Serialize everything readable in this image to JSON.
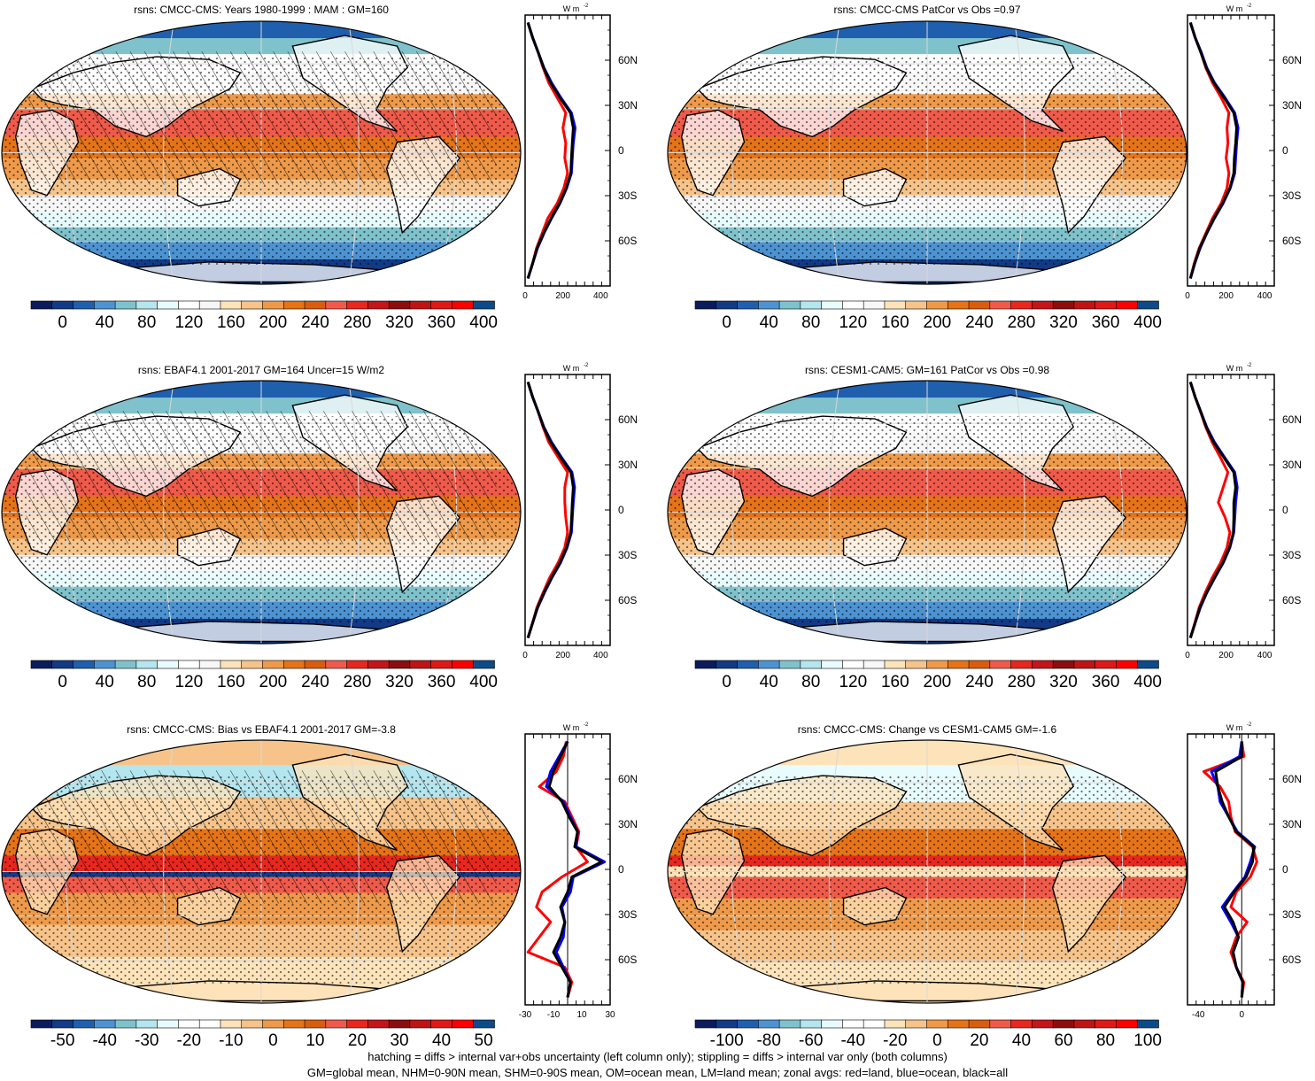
{
  "palette_full": [
    "#0b1c5c",
    "#123a86",
    "#1f5fae",
    "#4d93d2",
    "#7fc2cc",
    "#b3e6ee",
    "#e8fbfd",
    "#ffffff",
    "#f7f7f7",
    "#fde3ba",
    "#f6c38a",
    "#ee9a4a",
    "#e57318",
    "#d95d0e",
    "#f05a4a",
    "#e8271f",
    "#c4151b",
    "#8b0d0d",
    "#c01414",
    "#e01818",
    "#ff0000",
    "#0d4a8a"
  ],
  "palette_diff": [
    "#0b1c5c",
    "#123a86",
    "#1f5fae",
    "#4d93d2",
    "#7fc2cc",
    "#b3e6ee",
    "#e8fbfd",
    "#ffffff",
    "#ffffff",
    "#fde3ba",
    "#f6c38a",
    "#ee9a4a",
    "#e57318",
    "#d95d0e",
    "#f05a4a",
    "#e8271f",
    "#c4151b",
    "#8b0d0d",
    "#c01414",
    "#e01818",
    "#ff0000",
    "#0d4a8a"
  ],
  "lat_labels": [
    "60N",
    "30N",
    "0",
    "30S",
    "60S"
  ],
  "line_colors": {
    "land": "#ff0000",
    "ocean": "#0000ff",
    "all": "#000000"
  },
  "footnotes": {
    "line1": "hatching = diffs > internal var+obs uncertainty (left column only); stippling = diffs > internal var only (both columns)",
    "line2": "GM=global mean, NHM=0-90N mean, SHM=0-90S mean, OM=ocean mean, LM=land mean; zonal avgs: red=land, blue=ocean, black=all"
  },
  "chart_data": [
    {
      "type": "heatmap",
      "title": "rsns: CMCC-CMS: Years 1980-1999 : MAM : GM=160",
      "colorbar_ticks": [
        "0",
        "40",
        "80",
        "120",
        "160",
        "200",
        "240",
        "280",
        "320",
        "360",
        "400"
      ],
      "pattern": "mean",
      "hatching": true,
      "profile": {
        "unit_label": "W m",
        "unit_exp": "-2",
        "xlim": [
          0,
          450
        ],
        "xticks": [
          0,
          200,
          400
        ],
        "xtick_labels": [
          "0",
          "200",
          "400"
        ],
        "lat": [
          -85,
          -75,
          -65,
          -55,
          -45,
          -35,
          -25,
          -15,
          -5,
          5,
          15,
          25,
          35,
          45,
          55,
          65,
          75,
          85
        ],
        "series": [
          {
            "name": "land",
            "values": [
              15,
              40,
              60,
              90,
              120,
              170,
              205,
              225,
              210,
              215,
              200,
              215,
              170,
              125,
              95,
              70,
              40,
              15
            ]
          },
          {
            "name": "ocean",
            "values": [
              15,
              40,
              65,
              100,
              140,
              185,
              220,
              245,
              250,
              255,
              265,
              245,
              190,
              140,
              100,
              70,
              40,
              15
            ]
          },
          {
            "name": "all",
            "values": [
              15,
              40,
              63,
              98,
              138,
              183,
              218,
              242,
              245,
              250,
              255,
              240,
              185,
              135,
              98,
              70,
              40,
              15
            ]
          }
        ]
      }
    },
    {
      "type": "heatmap",
      "title": "rsns: CMCC-CMS PatCor vs Obs =0.97",
      "colorbar_ticks": [
        "0",
        "40",
        "80",
        "120",
        "160",
        "200",
        "240",
        "280",
        "320",
        "360",
        "400"
      ],
      "pattern": "mean",
      "hatching": false,
      "profile": {
        "unit_label": "W m",
        "unit_exp": "-2",
        "xlim": [
          0,
          450
        ],
        "xticks": [
          0,
          200,
          400
        ],
        "xtick_labels": [
          "0",
          "200",
          "400"
        ],
        "lat": [
          -85,
          -75,
          -65,
          -55,
          -45,
          -35,
          -25,
          -15,
          -5,
          5,
          15,
          25,
          35,
          45,
          55,
          65,
          75,
          85
        ],
        "series": [
          {
            "name": "land",
            "values": [
              15,
              35,
              60,
              95,
              130,
              175,
              205,
              215,
              200,
              210,
              205,
              215,
              175,
              130,
              95,
              70,
              40,
              15
            ]
          },
          {
            "name": "ocean",
            "values": [
              15,
              38,
              65,
              100,
              140,
              185,
              222,
              245,
              250,
              255,
              262,
              245,
              195,
              140,
              100,
              72,
              40,
              15
            ]
          },
          {
            "name": "all",
            "values": [
              15,
              37,
              63,
              99,
              138,
              183,
              220,
              240,
              243,
              250,
              255,
              240,
              190,
              137,
              98,
              70,
              40,
              15
            ]
          }
        ]
      }
    },
    {
      "type": "heatmap",
      "title": "rsns: EBAF4.1 2001-2017 GM=164 Uncer=15 W/m2",
      "colorbar_ticks": [
        "0",
        "40",
        "80",
        "120",
        "160",
        "200",
        "240",
        "280",
        "320",
        "360",
        "400"
      ],
      "pattern": "mean",
      "hatching": true,
      "profile": {
        "unit_label": "W m",
        "unit_exp": "-2",
        "xlim": [
          0,
          450
        ],
        "xticks": [
          0,
          200,
          400
        ],
        "xtick_labels": [
          "0",
          "200",
          "400"
        ],
        "lat": [
          -85,
          -75,
          -65,
          -55,
          -45,
          -35,
          -25,
          -15,
          -5,
          5,
          15,
          25,
          35,
          45,
          55,
          65,
          75,
          85
        ],
        "series": [
          {
            "name": "land",
            "values": [
              15,
              40,
              62,
              95,
              130,
              175,
              210,
              225,
              215,
              210,
              210,
              225,
              175,
              125,
              95,
              70,
              40,
              15
            ]
          },
          {
            "name": "ocean",
            "values": [
              15,
              40,
              66,
              102,
              142,
              188,
              222,
              245,
              250,
              255,
              262,
              248,
              192,
              140,
              100,
              70,
              40,
              15
            ]
          },
          {
            "name": "all",
            "values": [
              15,
              40,
              65,
              100,
              140,
              185,
              220,
              242,
              246,
              250,
              255,
              243,
              188,
              136,
              98,
              70,
              40,
              15
            ]
          }
        ]
      }
    },
    {
      "type": "heatmap",
      "title": "rsns: CESM1-CAM5: GM=161 PatCor vs Obs =0.98",
      "colorbar_ticks": [
        "0",
        "40",
        "80",
        "120",
        "160",
        "200",
        "240",
        "280",
        "320",
        "360",
        "400"
      ],
      "pattern": "mean",
      "hatching": false,
      "profile": {
        "unit_label": "W m",
        "unit_exp": "-2",
        "xlim": [
          0,
          450
        ],
        "xticks": [
          0,
          200,
          400
        ],
        "xtick_labels": [
          "0",
          "200",
          "400"
        ],
        "lat": [
          -85,
          -75,
          -65,
          -55,
          -45,
          -35,
          -25,
          -15,
          -5,
          5,
          15,
          25,
          35,
          45,
          55,
          65,
          75,
          85
        ],
        "series": [
          {
            "name": "land",
            "values": [
              15,
              38,
              60,
              92,
              128,
              172,
              205,
              220,
              195,
              160,
              185,
              210,
              170,
              128,
              95,
              68,
              40,
              15
            ]
          },
          {
            "name": "ocean",
            "values": [
              15,
              40,
              66,
              100,
              142,
              186,
              220,
              240,
              245,
              250,
              258,
              245,
              192,
              140,
              100,
              70,
              40,
              15
            ]
          },
          {
            "name": "all",
            "values": [
              15,
              40,
              64,
              99,
              140,
              184,
              218,
              238,
              240,
              240,
              250,
              240,
              188,
              136,
              98,
              70,
              40,
              15
            ]
          }
        ]
      }
    },
    {
      "type": "heatmap",
      "title": "rsns: CMCC-CMS: Bias vs EBAF4.1 2001-2017 GM=-3.8",
      "colorbar_ticks": [
        "-50",
        "-40",
        "-30",
        "-20",
        "-10",
        "0",
        "10",
        "20",
        "30",
        "40",
        "50"
      ],
      "pattern": "bias",
      "hatching": true,
      "profile": {
        "unit_label": "W m",
        "unit_exp": "-2",
        "xlim": [
          -30,
          30
        ],
        "zero_line": true,
        "xticks": [
          -30,
          -10,
          10,
          30
        ],
        "xtick_labels": [
          "-30",
          "-10",
          "10",
          "30"
        ],
        "lat": [
          -85,
          -75,
          -65,
          -55,
          -45,
          -35,
          -25,
          -15,
          -5,
          5,
          15,
          25,
          35,
          45,
          55,
          65,
          75,
          85
        ],
        "series": [
          {
            "name": "land",
            "values": [
              0,
              3,
              -2,
              -28,
              -20,
              -12,
              -22,
              -18,
              -4,
              14,
              6,
              8,
              3,
              -2,
              -20,
              -8,
              -3,
              -1
            ]
          },
          {
            "name": "ocean",
            "values": [
              0,
              2,
              -3,
              -8,
              -3,
              -2,
              -4,
              2,
              4,
              26,
              6,
              7,
              2,
              -3,
              -15,
              -12,
              -6,
              0
            ]
          },
          {
            "name": "all",
            "values": [
              0,
              2,
              -4,
              -10,
              -5,
              -2,
              -5,
              0,
              3,
              24,
              5,
              7,
              1,
              -4,
              -13,
              -10,
              -5,
              0
            ]
          }
        ]
      }
    },
    {
      "type": "heatmap",
      "title": "rsns: CMCC-CMS: Change vs CESM1-CAM5 GM=-1.6",
      "colorbar_ticks": [
        "-100",
        "-80",
        "-60",
        "-40",
        "-20",
        "0",
        "20",
        "40",
        "60",
        "80",
        "100"
      ],
      "pattern": "change",
      "hatching": false,
      "profile": {
        "unit_label": "W m",
        "unit_exp": "-2",
        "xlim": [
          -50,
          30
        ],
        "zero_line": true,
        "xticks": [
          -40,
          0
        ],
        "xtick_labels": [
          "-40",
          "0"
        ],
        "lat": [
          -85,
          -75,
          -65,
          -55,
          -45,
          -35,
          -25,
          -15,
          -5,
          5,
          15,
          25,
          35,
          45,
          55,
          65,
          75,
          85
        ],
        "series": [
          {
            "name": "land",
            "values": [
              0,
              2,
              -5,
              -10,
              -5,
              5,
              -10,
              -5,
              8,
              14,
              10,
              -6,
              -10,
              -12,
              -20,
              -35,
              2,
              0
            ]
          },
          {
            "name": "ocean",
            "values": [
              0,
              1,
              -5,
              -8,
              -3,
              -10,
              -18,
              -8,
              3,
              8,
              12,
              -4,
              -12,
              -20,
              -22,
              -28,
              -2,
              0
            ]
          },
          {
            "name": "all",
            "values": [
              0,
              1,
              -5,
              -8,
              -3,
              -8,
              -16,
              -7,
              4,
              10,
              11,
              -5,
              -12,
              -18,
              -22,
              -24,
              0,
              0
            ]
          }
        ]
      }
    }
  ]
}
